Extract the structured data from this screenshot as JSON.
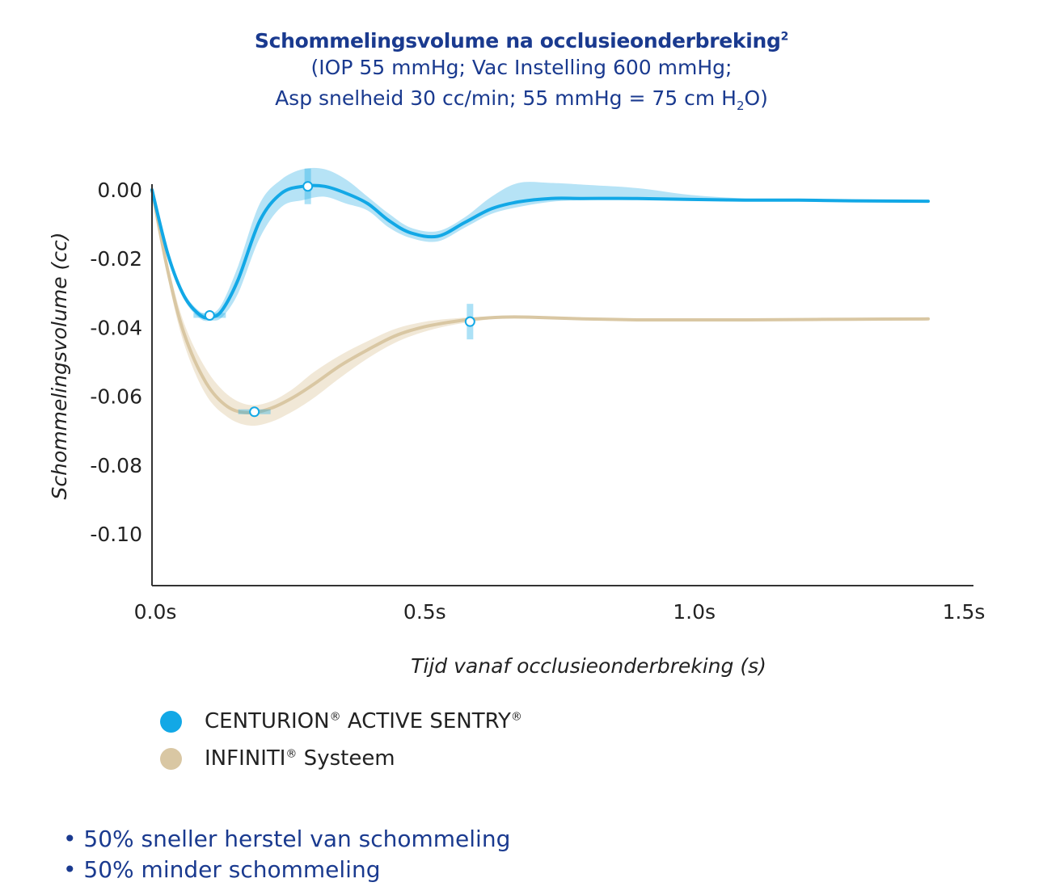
{
  "title": "Schommelingsvolume na occlusieonderbreking",
  "title_sup": "2",
  "subtitle_line1": "(IOP 55 mmHg; Vac Instelling 600 mmHg;",
  "subtitle_line2_pre": "Asp snelheid 30 cc/min; 55 mmHg = 75 cm H",
  "subtitle_line2_sub": "2",
  "subtitle_line2_post": "O)",
  "legend": [
    {
      "name": "CENTURION",
      "reg1": "®",
      "name2": " ACTIVE SENTRY",
      "reg2": "®"
    },
    {
      "name": "INFINITI",
      "reg1": "®",
      "name2": " Systeem",
      "reg2": ""
    }
  ],
  "bullets": [
    "• 50% sneller herstel van schommeling",
    "• 50% minder schommeling"
  ],
  "chart_data": {
    "type": "line",
    "xlabel": "Tijd vanaf occlusieonderbreking (s)",
    "ylabel": "Schommelingsvolume (cc)",
    "x_ticks": [
      "0.0s",
      "0.5s",
      "1.0s",
      "1.5s"
    ],
    "y_ticks": [
      "0.00",
      "-0.02",
      "-0.04",
      "-0.06",
      "-0.08",
      "-0.10"
    ],
    "xlim": [
      0,
      1.5
    ],
    "ylim": [
      -0.115,
      0.008
    ],
    "colors": {
      "centurion": "#12a8e6",
      "centurion_band": "#a9def4",
      "infiniti": "#d9c7a3",
      "infiniti_band": "#efe4d0",
      "axis": "#333333"
    },
    "series": [
      {
        "name": "CENTURION® ACTIVE SENTRY®",
        "x": [
          0,
          0.03,
          0.06,
          0.09,
          0.11,
          0.13,
          0.16,
          0.2,
          0.24,
          0.28,
          0.32,
          0.36,
          0.4,
          0.44,
          0.48,
          0.53,
          0.58,
          0.63,
          0.68,
          0.74,
          0.8,
          0.9,
          1.0,
          1.1,
          1.2,
          1.3,
          1.44
        ],
        "values": [
          0.0,
          -0.019,
          -0.031,
          -0.0365,
          -0.037,
          -0.035,
          -0.026,
          -0.009,
          -0.001,
          0.001,
          0.001,
          -0.001,
          -0.004,
          -0.009,
          -0.0125,
          -0.0135,
          -0.0095,
          -0.0055,
          -0.0035,
          -0.0025,
          -0.0025,
          -0.0025,
          -0.0028,
          -0.003,
          -0.003,
          -0.0032,
          -0.0033
        ],
        "band_upper": [
          0.0,
          -0.018,
          -0.03,
          -0.0355,
          -0.036,
          -0.033,
          -0.022,
          -0.004,
          0.003,
          0.006,
          0.006,
          0.003,
          -0.002,
          -0.007,
          -0.011,
          -0.012,
          -0.008,
          -0.002,
          0.002,
          0.002,
          0.0015,
          0.0005,
          -0.0015,
          -0.0025,
          -0.003,
          -0.0032,
          -0.0033
        ],
        "band_lower": [
          0.0,
          -0.02,
          -0.032,
          -0.0375,
          -0.038,
          -0.037,
          -0.03,
          -0.014,
          -0.005,
          -0.003,
          -0.002,
          -0.004,
          -0.006,
          -0.011,
          -0.014,
          -0.015,
          -0.011,
          -0.007,
          -0.005,
          -0.0035,
          -0.003,
          -0.0028,
          -0.003,
          -0.003,
          -0.003,
          -0.0032,
          -0.0033
        ],
        "markers": [
          [
            0.107,
            -0.0365
          ],
          [
            0.289,
            0.001
          ],
          [
            0.59,
            -0.0383
          ]
        ]
      },
      {
        "name": "INFINITI® Systeem",
        "x": [
          0,
          0.03,
          0.06,
          0.1,
          0.14,
          0.18,
          0.22,
          0.26,
          0.3,
          0.35,
          0.4,
          0.45,
          0.5,
          0.55,
          0.6,
          0.65,
          0.7,
          0.8,
          0.9,
          1.0,
          1.1,
          1.2,
          1.3,
          1.44
        ],
        "values": [
          0.0,
          -0.024,
          -0.042,
          -0.056,
          -0.063,
          -0.0648,
          -0.0635,
          -0.0605,
          -0.0565,
          -0.051,
          -0.0465,
          -0.0425,
          -0.04,
          -0.0385,
          -0.0375,
          -0.037,
          -0.037,
          -0.0375,
          -0.0378,
          -0.0378,
          -0.0378,
          -0.0377,
          -0.0376,
          -0.0375
        ],
        "band_upper": [
          0.0,
          -0.022,
          -0.039,
          -0.052,
          -0.0595,
          -0.0625,
          -0.0615,
          -0.058,
          -0.053,
          -0.048,
          -0.044,
          -0.0405,
          -0.0385,
          -0.0375,
          -0.037,
          -0.0368,
          -0.0369,
          -0.0374,
          -0.0377,
          -0.0378,
          -0.0378,
          -0.0377,
          -0.0376,
          -0.0375
        ],
        "band_lower": [
          0.0,
          -0.026,
          -0.045,
          -0.0595,
          -0.066,
          -0.0685,
          -0.0675,
          -0.0645,
          -0.0605,
          -0.0545,
          -0.049,
          -0.0445,
          -0.0415,
          -0.0395,
          -0.0382,
          -0.0373,
          -0.0371,
          -0.0376,
          -0.0379,
          -0.0378,
          -0.0378,
          -0.0377,
          -0.0376,
          -0.0375
        ],
        "markers": [
          [
            0.19,
            -0.0645
          ]
        ]
      }
    ]
  }
}
